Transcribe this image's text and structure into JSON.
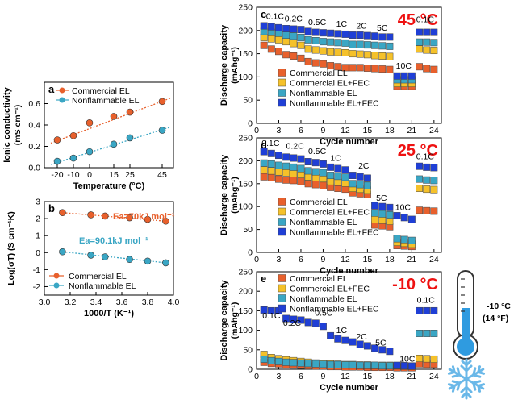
{
  "colors": {
    "orange": "#e8602c",
    "teal": "#3aa6c4",
    "yellow": "#f5c12a",
    "blue": "#1f3fd6",
    "red": "#ee1111",
    "thermo_fill": "#2f9be0",
    "snow": "#6ab8e8"
  },
  "chart_data": [
    {
      "id": "a",
      "type": "scatter",
      "panel_label": "a",
      "xlabel": "Temperature (°C)",
      "ylabel_line1": "Ionic conductivity",
      "ylabel_line2": "(mS cm⁻¹)",
      "xlim": [
        -28,
        52
      ],
      "ylim": [
        0,
        0.8
      ],
      "xticks": [
        -20,
        -10,
        0,
        15,
        25,
        45
      ],
      "yticks": [
        0.0,
        0.2,
        0.4,
        0.6
      ],
      "ytick_labels": [
        "0.0",
        "0.2",
        "0.4",
        "0.6"
      ],
      "legend": [
        "Commercial EL",
        "Nonflammable EL"
      ],
      "series": [
        {
          "name": "Commercial EL",
          "color": "orange",
          "x": [
            -20,
            -10,
            0,
            15,
            25,
            45
          ],
          "y": [
            0.26,
            0.3,
            0.42,
            0.48,
            0.52,
            0.62
          ]
        },
        {
          "name": "Nonflammable EL",
          "color": "teal",
          "x": [
            -20,
            -10,
            0,
            15,
            25,
            45
          ],
          "y": [
            0.06,
            0.09,
            0.15,
            0.22,
            0.28,
            0.35
          ]
        }
      ]
    },
    {
      "id": "b",
      "type": "scatter",
      "panel_label": "b",
      "xlabel": "1000/T (K⁻¹)",
      "ylabel": "Log(σT) (S cm⁻¹K)",
      "xlim": [
        3.0,
        4.0
      ],
      "ylim": [
        -2.5,
        3.0
      ],
      "xticks": [
        3.0,
        3.2,
        3.4,
        3.6,
        3.8,
        4.0
      ],
      "yticks": [
        -2,
        -1,
        0,
        1,
        2,
        3
      ],
      "legend": [
        "Commercial EL",
        "Nonflammable EL"
      ],
      "annotations": [
        "Ea=70kJ mol⁻¹",
        "Ea=90.1kJ mol⁻¹"
      ],
      "series": [
        {
          "name": "Commercial EL",
          "color": "orange",
          "x": [
            3.14,
            3.36,
            3.47,
            3.66,
            3.8,
            3.94
          ],
          "y": [
            2.35,
            2.22,
            2.15,
            2.05,
            1.95,
            1.85
          ]
        },
        {
          "name": "Nonflammable EL",
          "color": "teal",
          "x": [
            3.14,
            3.36,
            3.47,
            3.66,
            3.8,
            3.94
          ],
          "y": [
            0.05,
            -0.15,
            -0.25,
            -0.4,
            -0.5,
            -0.6
          ]
        }
      ]
    },
    {
      "id": "c",
      "type": "scatter",
      "panel_label": "c",
      "temperature_label": "45 °C",
      "xlabel": "Cycle number",
      "ylabel_line1": "Discharge capacity",
      "ylabel_line2": "(mAhg⁻¹)",
      "xlim": [
        0,
        25
      ],
      "ylim": [
        0,
        250
      ],
      "xticks": [
        0,
        3,
        6,
        9,
        12,
        15,
        18,
        21,
        24
      ],
      "yticks": [
        0,
        50,
        100,
        150,
        200,
        250
      ],
      "rate_labels": [
        "0.1C",
        "0.2C",
        "0.5C",
        "1C",
        "2C",
        "5C",
        "10C",
        "0.1C"
      ],
      "legend": [
        "Commercial EL",
        "Commercial EL+FEC",
        "Nonflammable EL",
        "Nonflammable EL+FEC"
      ],
      "series": [
        {
          "name": "Commercial EL",
          "color": "orange",
          "x": [
            1,
            2,
            3,
            4,
            5,
            6,
            7,
            8,
            9,
            10,
            11,
            12,
            13,
            14,
            15,
            16,
            17,
            18,
            19,
            20,
            21,
            22,
            23,
            24
          ],
          "y": [
            168,
            160,
            155,
            148,
            145,
            140,
            133,
            130,
            128,
            124,
            122,
            120,
            120,
            120,
            119,
            118,
            117,
            116,
            80,
            80,
            80,
            122,
            118,
            116
          ]
        },
        {
          "name": "Commercial EL+FEC",
          "color": "yellow",
          "x": [
            1,
            2,
            3,
            4,
            5,
            6,
            7,
            8,
            9,
            10,
            11,
            12,
            13,
            14,
            15,
            16,
            17,
            18,
            19,
            20,
            21,
            22,
            23,
            24
          ],
          "y": [
            185,
            182,
            180,
            176,
            172,
            168,
            160,
            158,
            156,
            154,
            153,
            152,
            150,
            149,
            148,
            146,
            145,
            144,
            86,
            86,
            86,
            160,
            158,
            157
          ]
        },
        {
          "name": "Nonflammable EL",
          "color": "teal",
          "x": [
            1,
            2,
            3,
            4,
            5,
            6,
            7,
            8,
            9,
            10,
            11,
            12,
            13,
            14,
            15,
            16,
            17,
            18,
            19,
            20,
            21,
            22,
            23,
            24
          ],
          "y": [
            198,
            196,
            194,
            190,
            188,
            185,
            180,
            178,
            176,
            175,
            174,
            173,
            170,
            170,
            169,
            168,
            167,
            166,
            94,
            94,
            94,
            175,
            175,
            174
          ]
        },
        {
          "name": "Nonflammable EL+FEC",
          "color": "blue",
          "x": [
            1,
            2,
            3,
            4,
            5,
            6,
            7,
            8,
            9,
            10,
            11,
            12,
            13,
            14,
            15,
            16,
            17,
            18,
            19,
            20,
            21,
            22,
            23,
            24
          ],
          "y": [
            210,
            208,
            206,
            204,
            203,
            202,
            198,
            196,
            195,
            194,
            193,
            192,
            190,
            190,
            189,
            188,
            186,
            186,
            102,
            102,
            102,
            196,
            196,
            196
          ]
        }
      ]
    },
    {
      "id": "d",
      "type": "scatter",
      "panel_label": "d",
      "temperature_label": "25 °C",
      "xlabel": "Cycle number",
      "ylabel_line1": "Discharge capacity",
      "ylabel_line2": "(mAhg⁻¹)",
      "xlim": [
        0,
        25
      ],
      "ylim": [
        0,
        250
      ],
      "xticks": [
        0,
        3,
        6,
        9,
        12,
        15,
        18,
        21,
        24
      ],
      "yticks": [
        0,
        50,
        100,
        150,
        200,
        250
      ],
      "rate_labels": [
        "0.1C",
        "0.2C",
        "0.5C",
        "1C",
        "2C",
        "5C",
        "10C",
        "0.1C"
      ],
      "legend": [
        "Commercial EL",
        "Commercial EL+FEC",
        "Nonflammable EL",
        "Nonflammable EL+FEC"
      ],
      "series": [
        {
          "name": "Commercial EL",
          "color": "orange",
          "x": [
            1,
            2,
            3,
            4,
            5,
            6,
            7,
            8,
            9,
            10,
            11,
            12,
            13,
            14,
            15,
            16,
            17,
            18,
            19,
            20,
            21,
            22,
            23,
            24
          ],
          "y": [
            165,
            163,
            160,
            158,
            157,
            155,
            150,
            148,
            146,
            142,
            140,
            138,
            130,
            128,
            126,
            60,
            58,
            56,
            15,
            14,
            13,
            92,
            91,
            90
          ]
        },
        {
          "name": "Commercial EL+FEC",
          "color": "yellow",
          "x": [
            1,
            2,
            3,
            4,
            5,
            6,
            7,
            8,
            9,
            10,
            11,
            12,
            13,
            14,
            15,
            16,
            17,
            18,
            19,
            20,
            21,
            22,
            23,
            24
          ],
          "y": [
            180,
            178,
            176,
            174,
            172,
            170,
            165,
            163,
            161,
            155,
            153,
            151,
            140,
            138,
            136,
            72,
            70,
            68,
            22,
            20,
            18,
            140,
            138,
            137
          ]
        },
        {
          "name": "Nonflammable EL",
          "color": "teal",
          "x": [
            1,
            2,
            3,
            4,
            5,
            6,
            7,
            8,
            9,
            10,
            11,
            12,
            13,
            14,
            15,
            16,
            17,
            18,
            19,
            20,
            21,
            22,
            23,
            24
          ],
          "y": [
            195,
            193,
            190,
            188,
            186,
            183,
            178,
            176,
            174,
            168,
            166,
            164,
            150,
            148,
            146,
            86,
            84,
            82,
            30,
            28,
            26,
            160,
            158,
            157
          ]
        },
        {
          "name": "Nonflammable EL+FEC",
          "color": "blue",
          "x": [
            1,
            2,
            3,
            4,
            5,
            6,
            7,
            8,
            9,
            10,
            11,
            12,
            13,
            14,
            15,
            16,
            17,
            18,
            19,
            20,
            21,
            22,
            23,
            24
          ],
          "y": [
            220,
            216,
            212,
            208,
            206,
            204,
            198,
            196,
            193,
            186,
            183,
            180,
            168,
            165,
            162,
            102,
            100,
            98,
            80,
            76,
            72,
            188,
            186,
            185
          ]
        }
      ]
    },
    {
      "id": "e",
      "type": "scatter",
      "panel_label": "e",
      "temperature_label": "-10 °C",
      "xlabel": "Cycle number",
      "ylabel_line1": "Discharge capacity",
      "ylabel_line2": "(mAhg⁻¹)",
      "xlim": [
        0,
        25
      ],
      "ylim": [
        0,
        250
      ],
      "xticks": [
        0,
        3,
        6,
        9,
        12,
        15,
        18,
        21,
        24
      ],
      "yticks": [
        0,
        50,
        100,
        150,
        200,
        250
      ],
      "rate_labels": [
        "0.1C",
        "0.2C",
        "0.5C",
        "1C",
        "2C",
        "5C",
        "10C",
        "0.1C"
      ],
      "legend": [
        "Commercial EL",
        "Commercial EL+FEC",
        "Nonflammable EL",
        "Nonflammable EL+FEC"
      ],
      "series": [
        {
          "name": "Commercial EL",
          "color": "orange",
          "x": [
            1,
            2,
            3,
            4,
            5,
            6,
            7,
            8,
            9,
            10,
            11,
            12,
            13,
            14,
            15,
            16,
            17,
            18,
            19,
            20,
            21,
            22,
            23,
            24
          ],
          "y": [
            18,
            15,
            14,
            12,
            11,
            10,
            9,
            8,
            8,
            7,
            7,
            6,
            6,
            6,
            5,
            5,
            5,
            5,
            4,
            4,
            4,
            14,
            13,
            13
          ]
        },
        {
          "name": "Commercial EL+FEC",
          "color": "yellow",
          "x": [
            1,
            2,
            3,
            4,
            5,
            6,
            7,
            8,
            9,
            10,
            11,
            12,
            13,
            14,
            15,
            16,
            17,
            18,
            19,
            20,
            21,
            22,
            23,
            24
          ],
          "y": [
            38,
            30,
            27,
            24,
            22,
            20,
            18,
            16,
            15,
            14,
            13,
            12,
            12,
            11,
            11,
            10,
            10,
            10,
            9,
            9,
            8,
            28,
            27,
            26
          ]
        },
        {
          "name": "Nonflammable EL",
          "color": "teal",
          "x": [
            1,
            2,
            3,
            4,
            5,
            6,
            7,
            8,
            9,
            10,
            11,
            12,
            13,
            14,
            15,
            16,
            17,
            18,
            19,
            20,
            21,
            22,
            23,
            24
          ],
          "y": [
            26,
            22,
            20,
            18,
            17,
            16,
            15,
            14,
            13,
            12,
            12,
            11,
            11,
            10,
            10,
            10,
            9,
            9,
            9,
            8,
            8,
            92,
            92,
            92
          ]
        },
        {
          "name": "Nonflammable EL+FEC",
          "color": "blue",
          "x": [
            1,
            2,
            3,
            4,
            5,
            6,
            7,
            8,
            9,
            10,
            11,
            12,
            13,
            14,
            15,
            16,
            17,
            18,
            19,
            20,
            21,
            22,
            23,
            24
          ],
          "y": [
            152,
            150,
            150,
            130,
            128,
            126,
            120,
            118,
            110,
            86,
            78,
            74,
            70,
            64,
            60,
            54,
            50,
            46,
            10,
            9,
            8,
            150,
            150,
            150
          ]
        }
      ]
    }
  ],
  "inset": {
    "temperature_line1": "-10 °C",
    "temperature_line2": "(14 °F)",
    "thermometer_icon": "thermometer-icon",
    "snowflake_icon": "snowflake-icon"
  }
}
